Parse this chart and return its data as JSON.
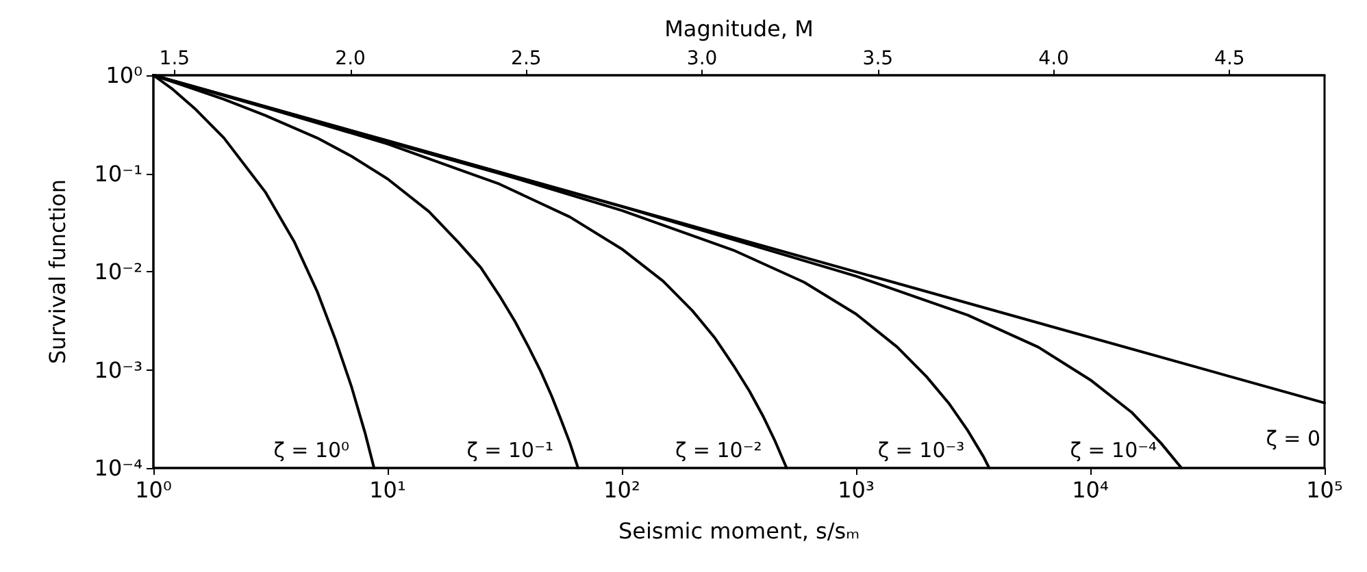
{
  "chart_data": {
    "type": "line",
    "xlabel": "Seismic moment, s/sₘ",
    "ylabel": "Survival function",
    "x2label": "Magnitude, M",
    "log": "xy",
    "grid": false,
    "marker": "none",
    "line_style": "solid",
    "xlim": [
      1,
      100000
    ],
    "xticks": [
      {
        "value": 1,
        "label": "10⁰"
      },
      {
        "value": 10,
        "label": "10¹"
      },
      {
        "value": 100,
        "label": "10²"
      },
      {
        "value": 1000,
        "label": "10³"
      },
      {
        "value": 10000,
        "label": "10⁴"
      },
      {
        "value": 100000,
        "label": "10⁵"
      }
    ],
    "ylim": [
      0.0001,
      1
    ],
    "yticks": [
      {
        "value": 0.0001,
        "label": "10⁻⁴"
      },
      {
        "value": 0.001,
        "label": "10⁻³"
      },
      {
        "value": 0.01,
        "label": "10⁻²"
      },
      {
        "value": 0.1,
        "label": "10⁻¹"
      },
      {
        "value": 1,
        "label": "10⁰"
      }
    ],
    "x2lim": [
      1.44,
      4.77
    ],
    "x2ticks": [
      1.5,
      {
        "value": 2,
        "label": "2.0"
      },
      2.5,
      {
        "value": 3,
        "label": "3.0"
      },
      3.5,
      {
        "value": 4,
        "label": "4.0"
      },
      4.5
    ],
    "series": [
      {
        "color": "#000000",
        "x": [
          1,
          1.2,
          1.5,
          2,
          3,
          4,
          5,
          6,
          7,
          8,
          8.75
        ],
        "values": [
          1,
          0.73,
          0.46,
          0.23,
          0.065,
          0.02,
          0.0063,
          0.002,
          0.00068,
          0.00023,
          0.0001
        ]
      },
      {
        "color": "#000000",
        "x": [
          1,
          2,
          3,
          5,
          7,
          10,
          15,
          20,
          25,
          30,
          35,
          40,
          45,
          50,
          55,
          60,
          65
        ],
        "values": [
          1,
          0.57,
          0.39,
          0.23,
          0.15,
          0.088,
          0.041,
          0.02,
          0.011,
          0.0057,
          0.0031,
          0.0017,
          0.00097,
          0.00055,
          0.00031,
          0.00018,
          0.0001
        ]
      },
      {
        "color": "#000000",
        "x": [
          1,
          3,
          10,
          30,
          60,
          100,
          150,
          200,
          250,
          300,
          350,
          400,
          450,
          505
        ],
        "values": [
          1,
          0.47,
          0.2,
          0.078,
          0.036,
          0.017,
          0.008,
          0.004,
          0.0021,
          0.0011,
          0.00061,
          0.00034,
          0.00019,
          0.0001
        ]
      },
      {
        "color": "#000000",
        "x": [
          1,
          10,
          30,
          100,
          300,
          600,
          1000,
          1500,
          2000,
          2500,
          3000,
          3500,
          3700
        ],
        "values": [
          1,
          0.21,
          0.1,
          0.042,
          0.0165,
          0.0078,
          0.0037,
          0.0017,
          0.00085,
          0.00045,
          0.00024,
          0.00013,
          0.0001
        ]
      },
      {
        "color": "#000000",
        "x": [
          1,
          10,
          100,
          1000,
          3000,
          6000,
          10000,
          15000,
          20000,
          24500
        ],
        "values": [
          1,
          0.215,
          0.046,
          0.009,
          0.0036,
          0.0017,
          0.00079,
          0.00037,
          0.00018,
          0.0001
        ]
      },
      {
        "color": "#000000",
        "x": [
          1,
          100000
        ],
        "values": [
          1,
          0.00046
        ]
      }
    ],
    "annotations": [
      "ζ = 10⁰",
      "ζ = 10⁻¹",
      "ζ = 10⁻²",
      "ζ = 10⁻³",
      "ζ = 10⁻⁴",
      "ζ = 0"
    ]
  }
}
